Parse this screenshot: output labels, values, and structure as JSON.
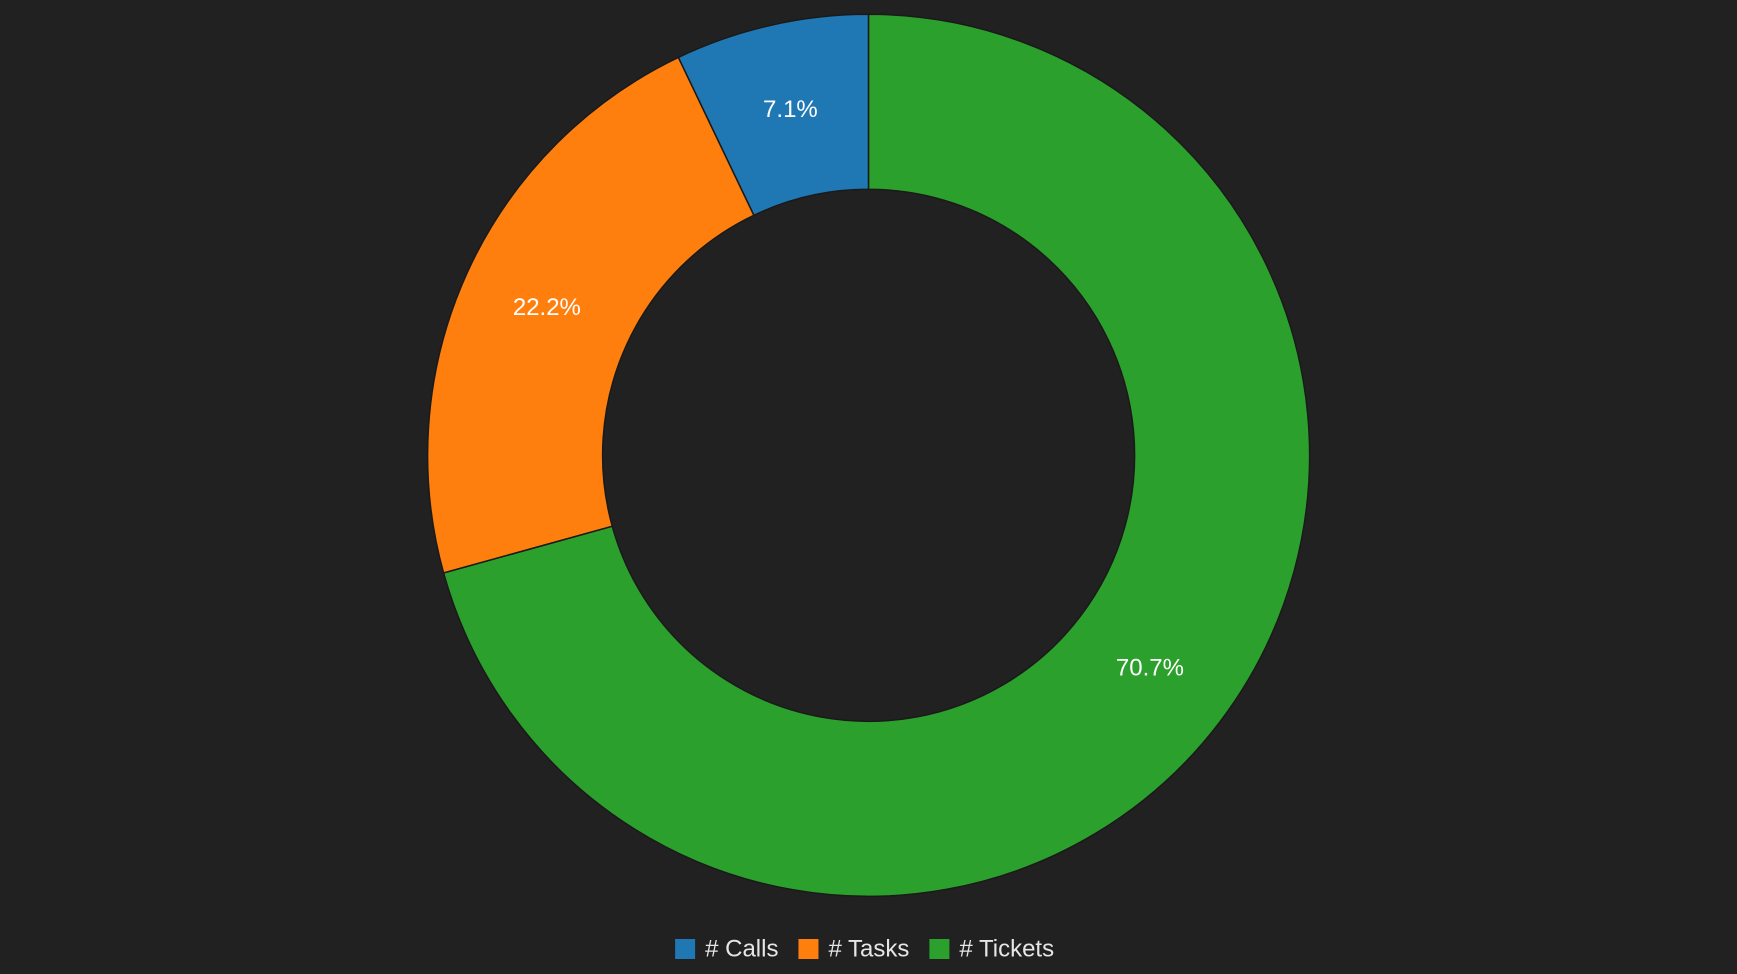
{
  "chart_data": {
    "type": "donut",
    "categories": [
      "# Calls",
      "# Tasks",
      "# Tickets"
    ],
    "values": [
      7.1,
      22.2,
      70.7
    ],
    "value_labels": [
      "7.1%",
      "22.2%",
      "70.7%"
    ],
    "colors": [
      "#1f77b4",
      "#ff7f0e",
      "#2ca02c"
    ],
    "legend": "bottom"
  }
}
